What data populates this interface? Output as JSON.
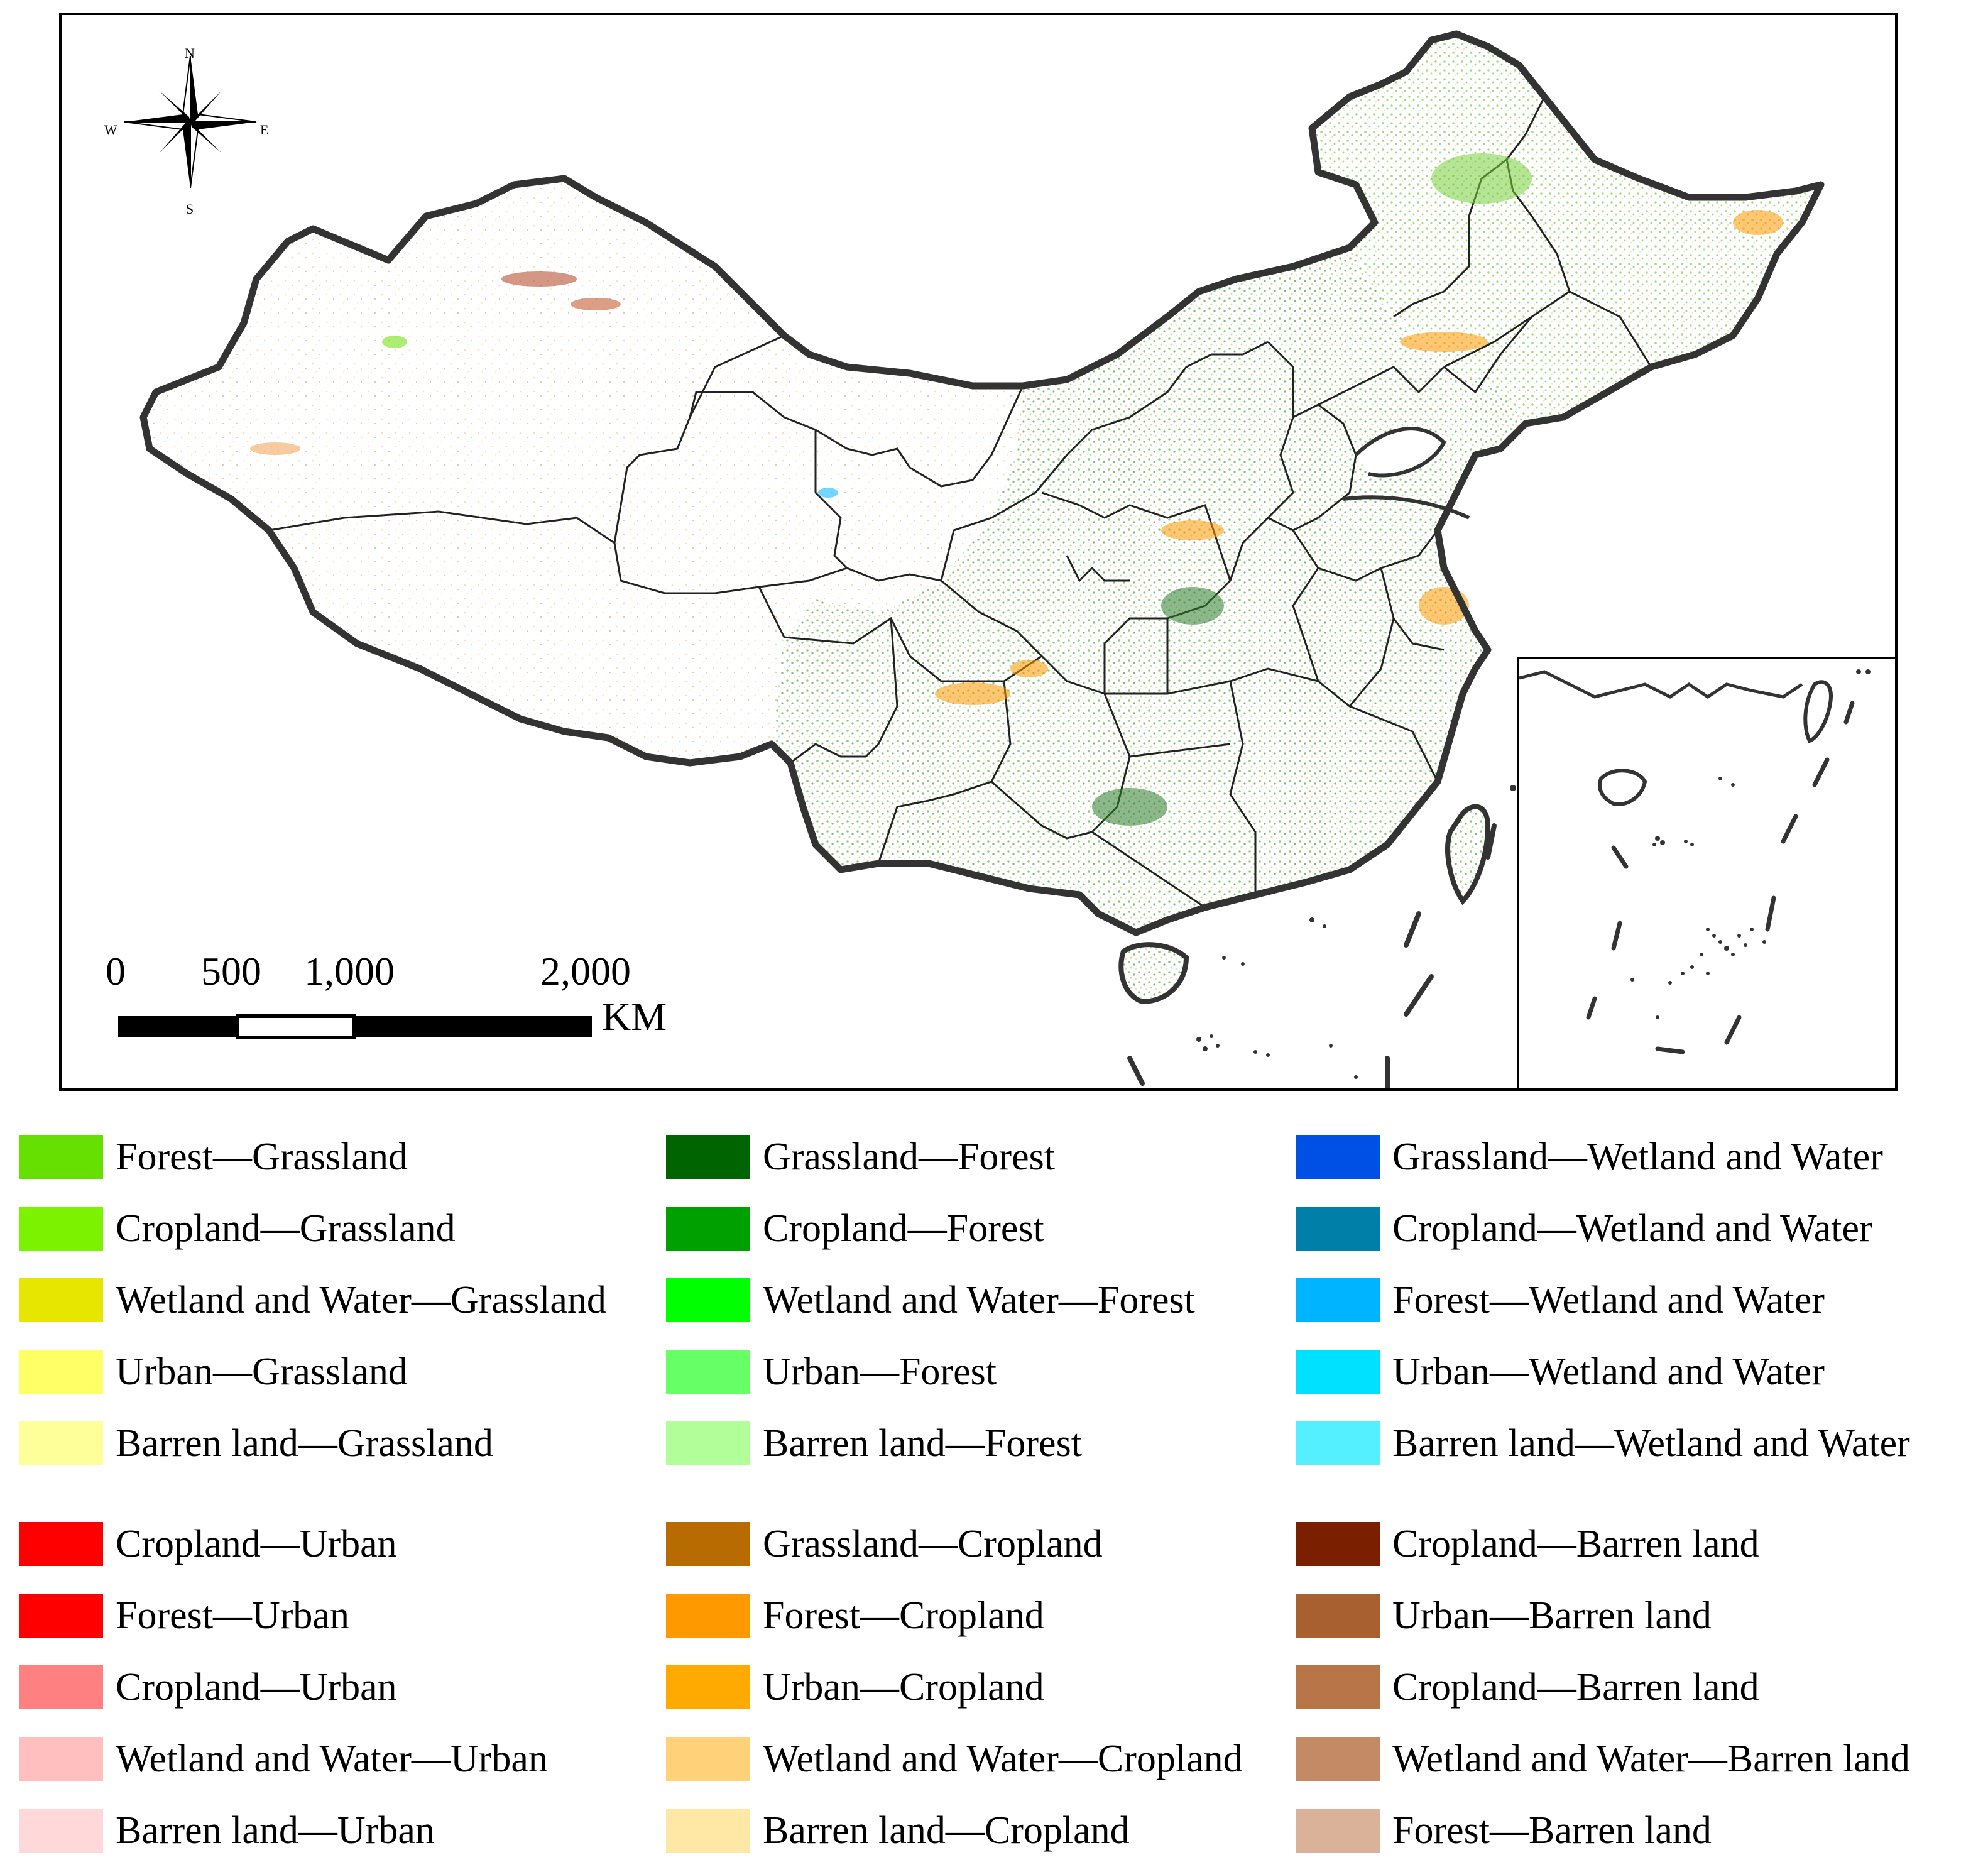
{
  "compass": {
    "north": "N",
    "south": "S",
    "east": "E",
    "west": "W"
  },
  "scale_bar": {
    "ticks": [
      "0",
      "500",
      "1,000",
      "2,000"
    ],
    "unit": "KM"
  },
  "legend": {
    "groups": [
      {
        "items": [
          {
            "label": "Forest—Grassland",
            "color": "#66e000"
          },
          {
            "label": "Cropland—Grassland",
            "color": "#7cf200"
          },
          {
            "label": "Wetland and Water—Grassland",
            "color": "#e6e600"
          },
          {
            "label": "Urban—Grassland",
            "color": "#ffff66"
          },
          {
            "label": "Barren land—Grassland",
            "color": "#ffff99"
          }
        ]
      },
      {
        "items": [
          {
            "label": "Grassland—Forest",
            "color": "#006400"
          },
          {
            "label": "Cropland—Forest",
            "color": "#00a000"
          },
          {
            "label": "Wetland and Water—Forest",
            "color": "#00ff00"
          },
          {
            "label": "Urban—Forest",
            "color": "#66ff66"
          },
          {
            "label": "Barren land—Forest",
            "color": "#b2ff99"
          }
        ]
      },
      {
        "items": [
          {
            "label": "Grassland—Wetland and Water",
            "color": "#0050e6"
          },
          {
            "label": "Cropland—Wetland and Water",
            "color": "#0080a8"
          },
          {
            "label": "Forest—Wetland and Water",
            "color": "#00b4ff"
          },
          {
            "label": "Urban—Wetland and Water",
            "color": "#00e0ff"
          },
          {
            "label": "Barren land—Wetland and Water",
            "color": "#55f0ff"
          }
        ]
      },
      {
        "items": [
          {
            "label": "Cropland—Urban",
            "color": "#ff0000"
          },
          {
            "label": "Forest—Urban",
            "color": "#ff0000"
          },
          {
            "label": "Cropland—Urban",
            "color": "#ff8080"
          },
          {
            "label": "Wetland and Water—Urban",
            "color": "#ffbfbf"
          },
          {
            "label": "Barren land—Urban",
            "color": "#ffd9d9"
          }
        ]
      },
      {
        "items": [
          {
            "label": "Grassland—Cropland",
            "color": "#b86b00"
          },
          {
            "label": "Forest—Cropland",
            "color": "#ff9900"
          },
          {
            "label": "Urban—Cropland",
            "color": "#ffaa00"
          },
          {
            "label": "Wetland and Water—Cropland",
            "color": "#ffd27a"
          },
          {
            "label": "Barren land—Cropland",
            "color": "#ffe8a6"
          }
        ]
      },
      {
        "items": [
          {
            "label": "Cropland—Barren land",
            "color": "#7a2000"
          },
          {
            "label": "Urban—Barren land",
            "color": "#a86030"
          },
          {
            "label": "Cropland—Barren land",
            "color": "#b87648"
          },
          {
            "label": "Wetland and Water—Barren land",
            "color": "#c48a66"
          },
          {
            "label": "Forest—Barren land",
            "color": "#dab29a"
          }
        ]
      }
    ]
  }
}
